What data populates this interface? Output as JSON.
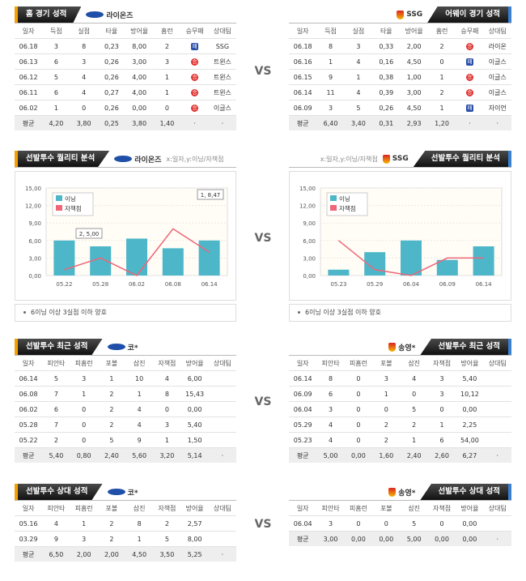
{
  "sections": [
    {
      "vs": "VS",
      "left": {
        "title": "홈 경기 성적",
        "team": "라이온즈",
        "columns": [
          "일자",
          "득점",
          "실점",
          "타율",
          "방어율",
          "홈런",
          "승무패",
          "상대팀"
        ],
        "rows": [
          [
            "06.18",
            "3",
            "8",
            "0,23",
            "8,00",
            "2",
            "패",
            "SSG"
          ],
          [
            "06.13",
            "6",
            "3",
            "0,26",
            "3,00",
            "3",
            "승",
            "트윈스"
          ],
          [
            "06.12",
            "5",
            "4",
            "0,26",
            "4,00",
            "1",
            "승",
            "트윈스"
          ],
          [
            "06.11",
            "6",
            "4",
            "0,27",
            "4,00",
            "1",
            "승",
            "트윈스"
          ],
          [
            "06.02",
            "1",
            "0",
            "0,26",
            "0,00",
            "0",
            "승",
            "이글스"
          ]
        ],
        "average": [
          "평균",
          "4,20",
          "3,80",
          "0,25",
          "3,80",
          "1,40",
          "·",
          "·"
        ]
      },
      "right": {
        "title": "어웨이 경기 성적",
        "team": "SSG",
        "columns": [
          "일자",
          "득점",
          "실점",
          "타율",
          "방어율",
          "홈런",
          "승무패",
          "상대팀"
        ],
        "rows": [
          [
            "06.18",
            "8",
            "3",
            "0,33",
            "2,00",
            "2",
            "승",
            "라이온"
          ],
          [
            "06.16",
            "1",
            "4",
            "0,16",
            "4,50",
            "0",
            "패",
            "이글스"
          ],
          [
            "06.15",
            "9",
            "1",
            "0,38",
            "1,00",
            "1",
            "승",
            "이글스"
          ],
          [
            "06.14",
            "11",
            "4",
            "0,39",
            "3,00",
            "2",
            "승",
            "이글스"
          ],
          [
            "06.09",
            "3",
            "5",
            "0,26",
            "4,50",
            "1",
            "패",
            "자이언"
          ]
        ],
        "average": [
          "평균",
          "6,40",
          "3,40",
          "0,31",
          "2,93",
          "1,20",
          "·",
          "·"
        ]
      }
    },
    {
      "vs": "VS",
      "left": {
        "title": "선발투수 퀄리티 분석",
        "team": "라이온즈",
        "axis_note": "x:일자,y:이닝/자책점",
        "note": "6이닝 이상 3실점 이하 양호"
      },
      "right": {
        "title": "선발투수 퀄리티 분석",
        "team": "SSG",
        "axis_note": "x:일자,y:이닝/자책점",
        "note": "6이닝 이상 3실점 이하 양호"
      }
    },
    {
      "vs": "VS",
      "left": {
        "title": "선발투수 최근 성적",
        "team": "코*",
        "columns": [
          "일자",
          "피안타",
          "피홈런",
          "포볼",
          "삼진",
          "자책점",
          "방어율",
          "상대팀"
        ],
        "rows": [
          [
            "06.14",
            "5",
            "3",
            "1",
            "10",
            "4",
            "6,00",
            ""
          ],
          [
            "06.08",
            "7",
            "1",
            "2",
            "1",
            "8",
            "15,43",
            ""
          ],
          [
            "06.02",
            "6",
            "0",
            "2",
            "4",
            "0",
            "0,00",
            ""
          ],
          [
            "05.28",
            "7",
            "0",
            "2",
            "4",
            "3",
            "5,40",
            ""
          ],
          [
            "05.22",
            "2",
            "0",
            "5",
            "9",
            "1",
            "1,50",
            ""
          ]
        ],
        "average": [
          "평균",
          "5,40",
          "0,80",
          "2,40",
          "5,60",
          "3,20",
          "5,14",
          "·"
        ]
      },
      "right": {
        "title": "선발투수 최근 성적",
        "team": "송영*",
        "columns": [
          "일자",
          "피안타",
          "피홈런",
          "포볼",
          "삼진",
          "자책점",
          "방어율",
          "상대팀"
        ],
        "rows": [
          [
            "06.14",
            "8",
            "0",
            "3",
            "4",
            "3",
            "5,40",
            ""
          ],
          [
            "06.09",
            "6",
            "0",
            "1",
            "0",
            "3",
            "10,12",
            ""
          ],
          [
            "06.04",
            "3",
            "0",
            "0",
            "5",
            "0",
            "0,00",
            ""
          ],
          [
            "05.29",
            "4",
            "0",
            "2",
            "2",
            "1",
            "2,25",
            ""
          ],
          [
            "05.23",
            "4",
            "0",
            "2",
            "1",
            "6",
            "54,00",
            ""
          ]
        ],
        "average": [
          "평균",
          "5,00",
          "0,00",
          "1,60",
          "2,40",
          "2,60",
          "6,27",
          "·"
        ]
      }
    },
    {
      "vs": "VS",
      "left": {
        "title": "선발투수 상대 성적",
        "team": "코*",
        "columns": [
          "일자",
          "피안타",
          "피홈런",
          "포볼",
          "삼진",
          "자책점",
          "방어율",
          "상대팀"
        ],
        "rows": [
          [
            "05.16",
            "4",
            "1",
            "2",
            "8",
            "2",
            "2,57",
            ""
          ],
          [
            "03.29",
            "9",
            "3",
            "2",
            "1",
            "5",
            "8,00",
            ""
          ]
        ],
        "average": [
          "평균",
          "6,50",
          "2,00",
          "2,00",
          "4,50",
          "3,50",
          "5,25",
          "·"
        ]
      },
      "right": {
        "title": "선발투수 상대 성적",
        "team": "송영*",
        "columns": [
          "일자",
          "피안타",
          "피홈런",
          "포볼",
          "삼진",
          "자책점",
          "방어율",
          "상대팀"
        ],
        "rows": [
          [
            "06.04",
            "3",
            "0",
            "0",
            "5",
            "0",
            "0,00",
            ""
          ]
        ],
        "average": [
          "평균",
          "3,00",
          "0,00",
          "0,00",
          "5,00",
          "0,00",
          "0,00",
          "·"
        ]
      }
    }
  ],
  "chart_data": [
    {
      "type": "bar_line",
      "categories": [
        "05.22",
        "05.28",
        "06.02",
        "06.08",
        "06.14"
      ],
      "series": [
        {
          "name": "이닝",
          "type": "bar",
          "color": "#4db6c8",
          "values": [
            6,
            5,
            6.33,
            4.67,
            6
          ]
        },
        {
          "name": "자책점",
          "type": "line",
          "color": "#ee6677",
          "values": [
            1,
            3,
            0,
            8,
            4
          ]
        }
      ],
      "ylim": [
        0,
        15
      ],
      "yticks": [
        {
          "value": 0,
          "label": "0,00"
        },
        {
          "value": 3,
          "label": "3,00"
        },
        {
          "value": 6,
          "label": "6,00"
        },
        {
          "value": 9,
          "label": "9,00"
        },
        {
          "value": 12,
          "label": "12,00"
        },
        {
          "value": 15,
          "label": "15,00"
        }
      ],
      "grid": true,
      "annotations": [
        "2, 5,00",
        "1, 8,47"
      ]
    },
    {
      "type": "bar_line",
      "categories": [
        "05.23",
        "05.29",
        "06.04",
        "06.09",
        "06.14"
      ],
      "series": [
        {
          "name": "이닝",
          "type": "bar",
          "color": "#4db6c8",
          "values": [
            1,
            4,
            6,
            2.67,
            5
          ]
        },
        {
          "name": "자책점",
          "type": "line",
          "color": "#ee6677",
          "values": [
            6,
            1,
            0,
            3,
            3
          ]
        }
      ],
      "ylim": [
        0,
        15
      ],
      "yticks": [
        {
          "value": 0,
          "label": "0,00"
        },
        {
          "value": 3,
          "label": "3,00"
        },
        {
          "value": 6,
          "label": "6,00"
        },
        {
          "value": 9,
          "label": "9,00"
        },
        {
          "value": 12,
          "label": "12,00"
        },
        {
          "value": 15,
          "label": "15,00"
        }
      ],
      "grid": true,
      "annotations": []
    }
  ]
}
